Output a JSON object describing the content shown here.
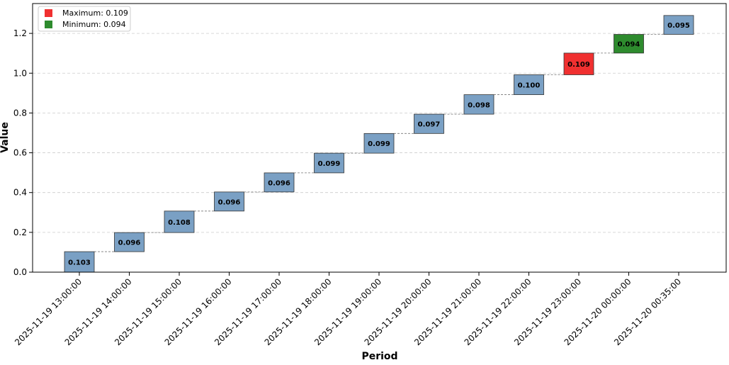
{
  "chart_data": {
    "type": "waterfall",
    "categories": [
      "2025-11-19 13:00:00",
      "2025-11-19 14:00:00",
      "2025-11-19 15:00:00",
      "2025-11-19 16:00:00",
      "2025-11-19 17:00:00",
      "2025-11-19 18:00:00",
      "2025-11-19 19:00:00",
      "2025-11-19 20:00:00",
      "2025-11-19 21:00:00",
      "2025-11-19 22:00:00",
      "2025-11-19 23:00:00",
      "2025-11-20 00:00:00",
      "2025-11-20 00:35:00"
    ],
    "values": [
      0.103,
      0.096,
      0.108,
      0.096,
      0.096,
      0.099,
      0.099,
      0.097,
      0.098,
      0.1,
      0.109,
      0.094,
      0.095
    ],
    "value_labels": [
      "0.103",
      "0.096",
      "0.108",
      "0.096",
      "0.096",
      "0.099",
      "0.099",
      "0.097",
      "0.098",
      "0.100",
      "0.109",
      "0.094",
      "0.095"
    ],
    "xlabel": "Period",
    "ylabel": "Value",
    "ylim": [
      0,
      1.35
    ],
    "yticks": [
      0.0,
      0.2,
      0.4,
      0.6,
      0.8,
      1.0,
      1.2
    ],
    "ytick_labels": [
      "0.0",
      "0.2",
      "0.4",
      "0.6",
      "0.8",
      "1.0",
      "1.2"
    ],
    "grid": "y-dashed",
    "legend": {
      "placement": "top-left",
      "entries": [
        {
          "label": "Maximum: 0.109",
          "color": "#f03030"
        },
        {
          "label": "Minimum: 0.094",
          "color": "#2e8b2e"
        }
      ]
    },
    "colors": {
      "default": "#7aa0c4",
      "max": "#f03030",
      "min": "#2e8b2e",
      "edge": "#333333",
      "connector": "#777777"
    },
    "max_index": 10,
    "min_index": 11
  }
}
